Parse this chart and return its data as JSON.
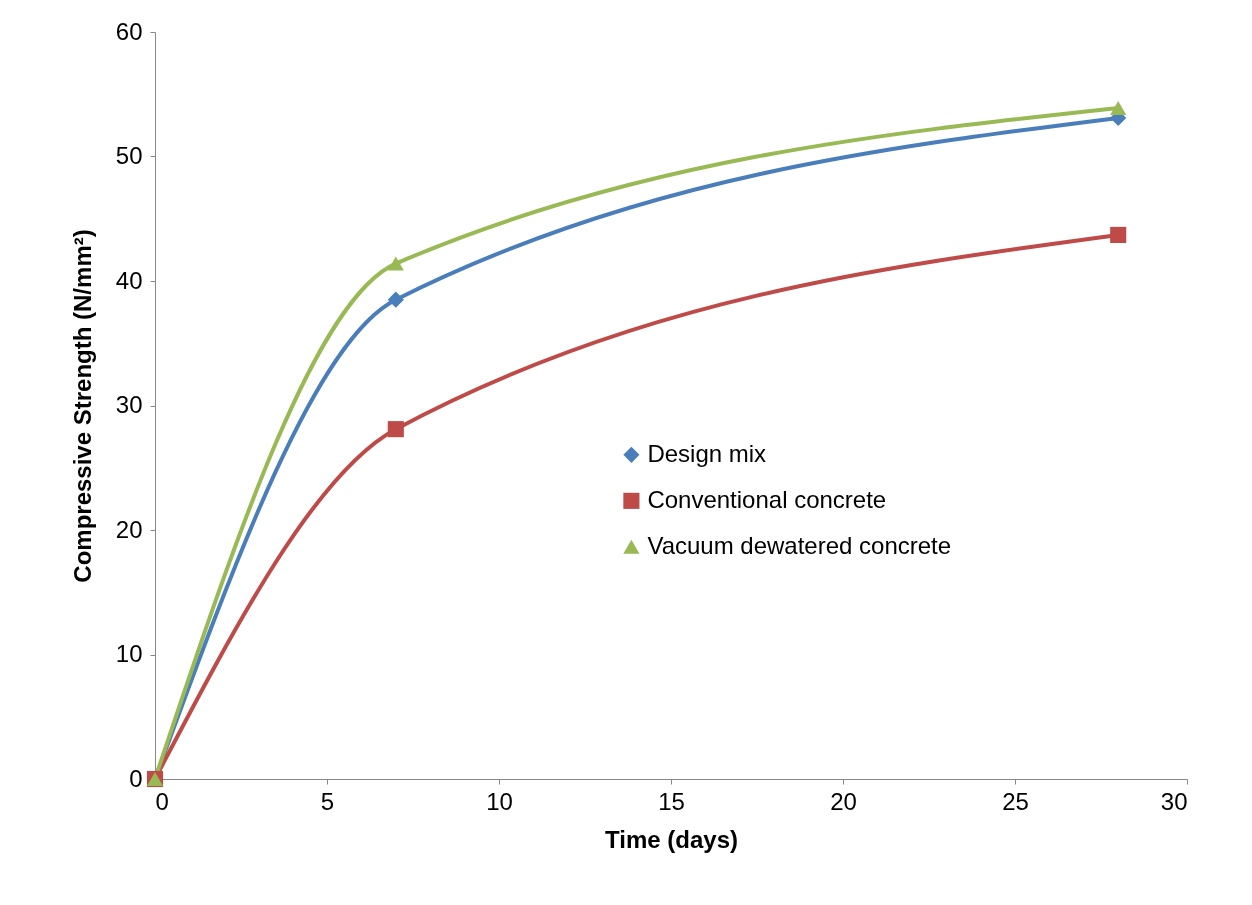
{
  "chart_data": {
    "type": "line",
    "xlabel": "Time (days)",
    "ylabel": "Compressive Strength (N/mm²)",
    "x": [
      0,
      7,
      28
    ],
    "series": [
      {
        "name": "Design mix",
        "color": "#4a7ebb",
        "values": [
          0,
          38.5,
          53.1
        ],
        "marker": "diamond"
      },
      {
        "name": "Conventional concrete",
        "color": "#be4b48",
        "values": [
          0,
          28.1,
          43.7
        ],
        "marker": "square"
      },
      {
        "name": "Vacuum dewatered concrete",
        "color": "#98b954",
        "values": [
          0,
          41.4,
          53.9
        ],
        "marker": "triangle"
      }
    ],
    "xlim": [
      0,
      30
    ],
    "xticks": [
      0,
      5,
      10,
      15,
      20,
      25,
      30
    ],
    "ylim": [
      0,
      60
    ],
    "yticks": [
      0,
      10,
      20,
      30,
      40,
      50,
      60
    ],
    "grid": false,
    "legend": "right"
  }
}
